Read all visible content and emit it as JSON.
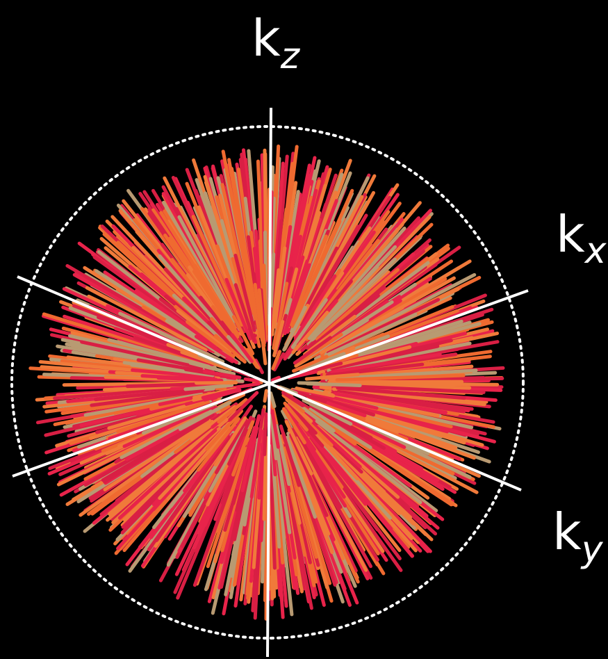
{
  "labels": {
    "kz": {
      "main": "k",
      "sub": "z"
    },
    "kx": {
      "main": "k",
      "sub": "x"
    },
    "ky": {
      "main": "k",
      "sub": "y"
    }
  }
}
